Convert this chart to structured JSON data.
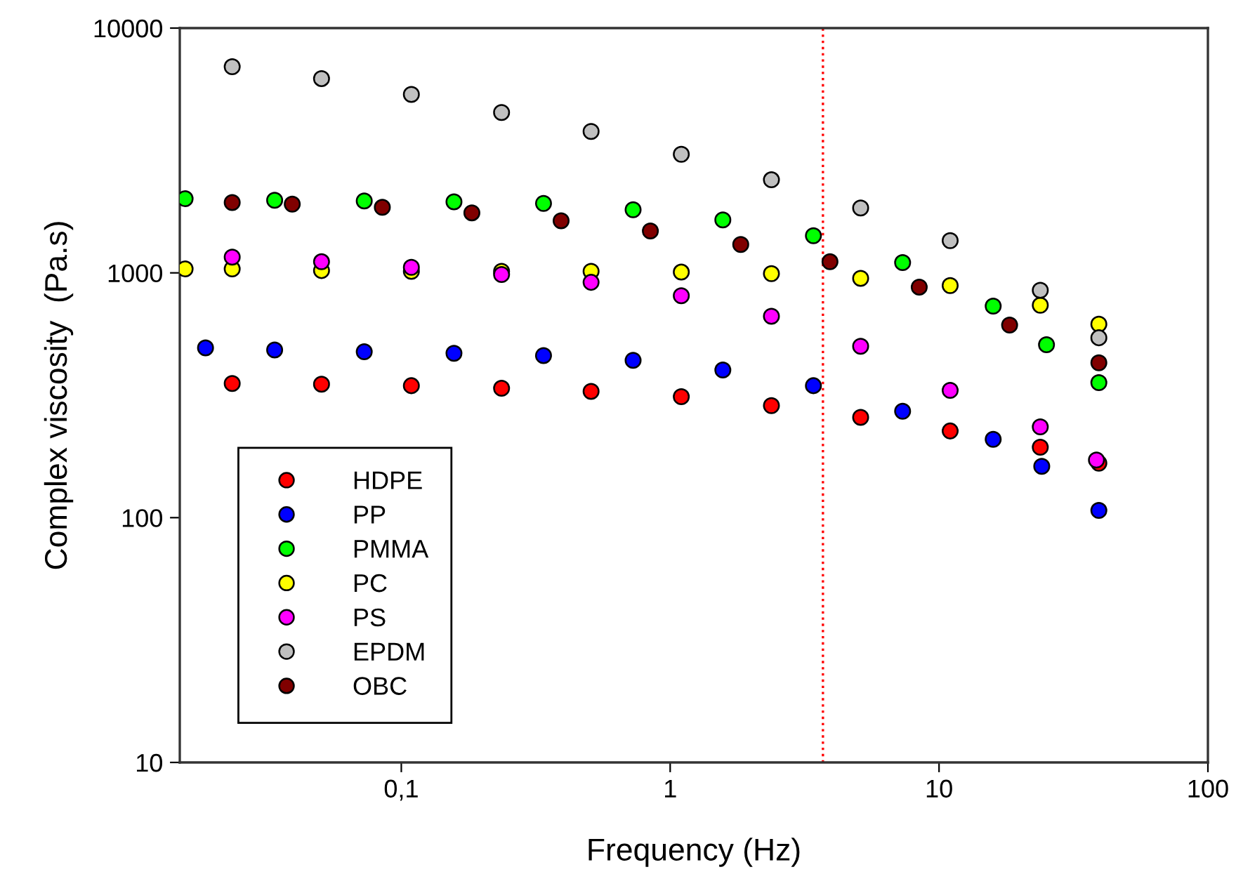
{
  "chart_data": {
    "type": "scatter",
    "xlabel": "Frequency (Hz)",
    "ylabel": "Complex viscosity  (Pa.s)",
    "log": "xy",
    "xlim": [
      0.015,
      100
    ],
    "ylim": [
      10,
      10000
    ],
    "xticks": [
      {
        "value": 0.1,
        "label": "0,1"
      },
      1,
      10,
      100
    ],
    "yticks": [
      10,
      100,
      1000,
      10000
    ],
    "grid": false,
    "legend": "bottom left",
    "marker": "circle",
    "ref_lines": [
      {
        "axis": "x",
        "value": 3.7,
        "color": "#ff0000",
        "line_style": "dotted"
      }
    ],
    "series": [
      {
        "name": "HDPE",
        "color": "#ff0000",
        "x": [
          0.0235,
          0.0505,
          0.109,
          0.236,
          0.508,
          1.1,
          2.38,
          5.11,
          11.0,
          23.8,
          39.3
        ],
        "values": [
          353,
          351,
          346,
          338,
          328,
          312,
          287,
          257,
          226,
          194,
          167
        ]
      },
      {
        "name": "PP",
        "color": "#0000ff",
        "x": [
          0.0187,
          0.0338,
          0.0728,
          0.157,
          0.338,
          0.728,
          1.57,
          3.41,
          7.32,
          15.9,
          24.1,
          39.3
        ],
        "values": [
          494,
          484,
          476,
          469,
          459,
          439,
          401,
          346,
          272,
          209,
          162,
          107
        ]
      },
      {
        "name": "PMMA",
        "color": "#00ff00",
        "x": [
          0.0157,
          0.0338,
          0.0728,
          0.157,
          0.338,
          0.728,
          1.57,
          3.41,
          7.32,
          15.9,
          25.1,
          39.3
        ],
        "values": [
          2010,
          1980,
          1966,
          1951,
          1922,
          1810,
          1645,
          1418,
          1101,
          732,
          509,
          356
        ]
      },
      {
        "name": "PC",
        "color": "#ffff00",
        "x": [
          0.0157,
          0.0235,
          0.0505,
          0.109,
          0.236,
          0.508,
          1.1,
          2.38,
          5.11,
          11.0,
          23.8,
          39.3
        ],
        "values": [
          1038,
          1038,
          1022,
          1015,
          1015,
          1015,
          1007,
          993,
          949,
          888,
          738,
          617
        ]
      },
      {
        "name": "PS",
        "color": "#ff00ff",
        "x": [
          0.0235,
          0.0505,
          0.109,
          0.236,
          0.508,
          1.1,
          2.38,
          5.11,
          11.0,
          23.8,
          38.5
        ],
        "values": [
          1160,
          1110,
          1053,
          985,
          915,
          806,
          665,
          501,
          331,
          235,
          172
        ]
      },
      {
        "name": "EPDM",
        "color": "#c0c0c0",
        "x": [
          0.0235,
          0.0505,
          0.109,
          0.236,
          0.508,
          1.1,
          2.38,
          5.11,
          11.0,
          23.8,
          39.3
        ],
        "values": [
          6950,
          6220,
          5360,
          4520,
          3780,
          3050,
          2400,
          1840,
          1355,
          849,
          543
        ]
      },
      {
        "name": "OBC",
        "color": "#800000",
        "x": [
          0.0235,
          0.0393,
          0.085,
          0.183,
          0.393,
          0.844,
          1.83,
          3.93,
          8.44,
          18.3,
          39.3
        ],
        "values": [
          1937,
          1909,
          1852,
          1759,
          1633,
          1482,
          1306,
          1110,
          875,
          612,
          429
        ]
      }
    ]
  }
}
